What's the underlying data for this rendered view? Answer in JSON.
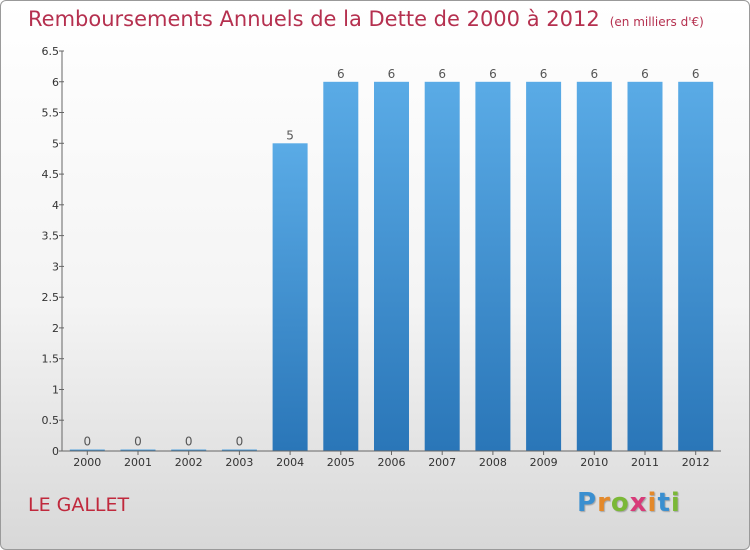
{
  "header": {
    "title": "Remboursements Annuels de la Dette de 2000 à 2012",
    "subtitle": "(en milliers d'€)"
  },
  "footer": {
    "commune": "LE GALLET",
    "logo_text": "Proxiti",
    "logo_colors": [
      "#3a8fd0",
      "#e4892a",
      "#7bb837",
      "#d83a79",
      "#e4892a",
      "#3a8fd0",
      "#7bb837"
    ]
  },
  "chart_data": {
    "type": "bar",
    "categories": [
      "2000",
      "2001",
      "2002",
      "2003",
      "2004",
      "2005",
      "2006",
      "2007",
      "2008",
      "2009",
      "2010",
      "2011",
      "2012"
    ],
    "values": [
      0,
      0,
      0,
      0,
      5,
      6,
      6,
      6,
      6,
      6,
      6,
      6,
      6
    ],
    "data_labels": [
      "0",
      "0",
      "0",
      "0",
      "5",
      "6",
      "6",
      "6",
      "6",
      "6",
      "6",
      "6",
      "6"
    ],
    "yticks": [
      "0",
      "0.5",
      "1",
      "1.5",
      "2",
      "2.5",
      "3",
      "3.5",
      "4",
      "4.5",
      "5",
      "5.5",
      "6",
      "6.5"
    ],
    "ylim": [
      0,
      6.5
    ],
    "title": "Remboursements Annuels de la Dette de 2000 à 2012",
    "subtitle": "(en milliers d'€)",
    "xlabel": "",
    "ylabel": "",
    "grid": false,
    "bar_color": "#3a8fd0",
    "bar_color_light": "#5aabe6",
    "bar_color_dark": "#2a76b8"
  }
}
